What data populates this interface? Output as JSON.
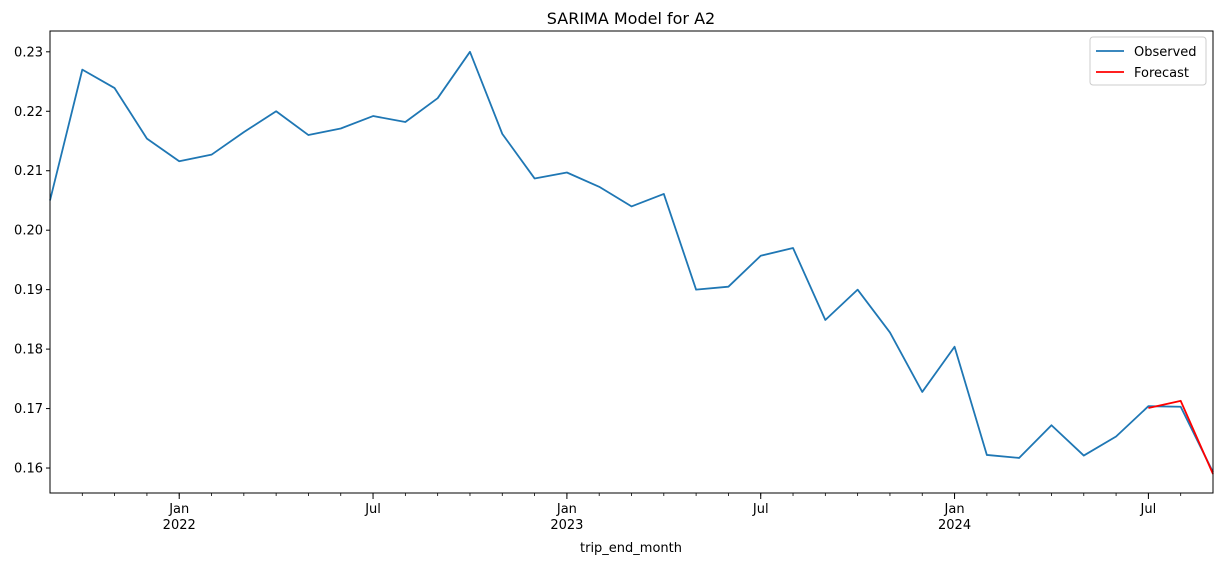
{
  "chart_data": {
    "type": "line",
    "title": "SARIMA Model for A2",
    "xlabel": "trip_end_month",
    "ylabel": "",
    "ylim": [
      0.1558,
      0.2335
    ],
    "xlim": [
      "2021-09",
      "2024-09"
    ],
    "y_ticks": [
      "0.16",
      "0.17",
      "0.18",
      "0.19",
      "0.20",
      "0.21",
      "0.22",
      "0.23"
    ],
    "y_tick_values": [
      0.16,
      0.17,
      0.18,
      0.19,
      0.2,
      0.21,
      0.22,
      0.23
    ],
    "x_major_ticks": [
      {
        "date": "2022-01",
        "label": "Jan",
        "year": "2022"
      },
      {
        "date": "2022-07",
        "label": "Jul",
        "year": ""
      },
      {
        "date": "2023-01",
        "label": "Jan",
        "year": "2023"
      },
      {
        "date": "2023-07",
        "label": "Jul",
        "year": ""
      },
      {
        "date": "2024-01",
        "label": "Jan",
        "year": "2024"
      },
      {
        "date": "2024-07",
        "label": "Jul",
        "year": ""
      }
    ],
    "grid": false,
    "legend_position": "top-right",
    "series": [
      {
        "name": "Observed",
        "color": "#1f77b4",
        "x": [
          "2021-09",
          "2021-10",
          "2021-11",
          "2021-12",
          "2022-01",
          "2022-02",
          "2022-03",
          "2022-04",
          "2022-05",
          "2022-06",
          "2022-07",
          "2022-08",
          "2022-09",
          "2022-10",
          "2022-11",
          "2022-12",
          "2023-01",
          "2023-02",
          "2023-03",
          "2023-04",
          "2023-05",
          "2023-06",
          "2023-07",
          "2023-08",
          "2023-09",
          "2023-10",
          "2023-11",
          "2023-12",
          "2024-01",
          "2024-02",
          "2024-03",
          "2024-04",
          "2024-05",
          "2024-06",
          "2024-07",
          "2024-08",
          "2024-09"
        ],
        "values": [
          0.205,
          0.227,
          0.2239,
          0.2154,
          0.2116,
          0.2127,
          0.2165,
          0.22,
          0.216,
          0.2171,
          0.2192,
          0.2182,
          0.2222,
          0.23,
          0.2162,
          0.2087,
          0.2097,
          0.2073,
          0.204,
          0.2061,
          0.19,
          0.1905,
          0.1957,
          0.197,
          0.1849,
          0.19,
          0.1828,
          0.1728,
          0.1804,
          0.1622,
          0.1617,
          0.1672,
          0.1621,
          0.1653,
          0.1704,
          0.1703,
          0.1593
        ]
      },
      {
        "name": "Forecast",
        "color": "#ff0000",
        "x": [
          "2024-07",
          "2024-08",
          "2024-09"
        ],
        "values": [
          0.1701,
          0.1713,
          0.159
        ]
      }
    ]
  }
}
